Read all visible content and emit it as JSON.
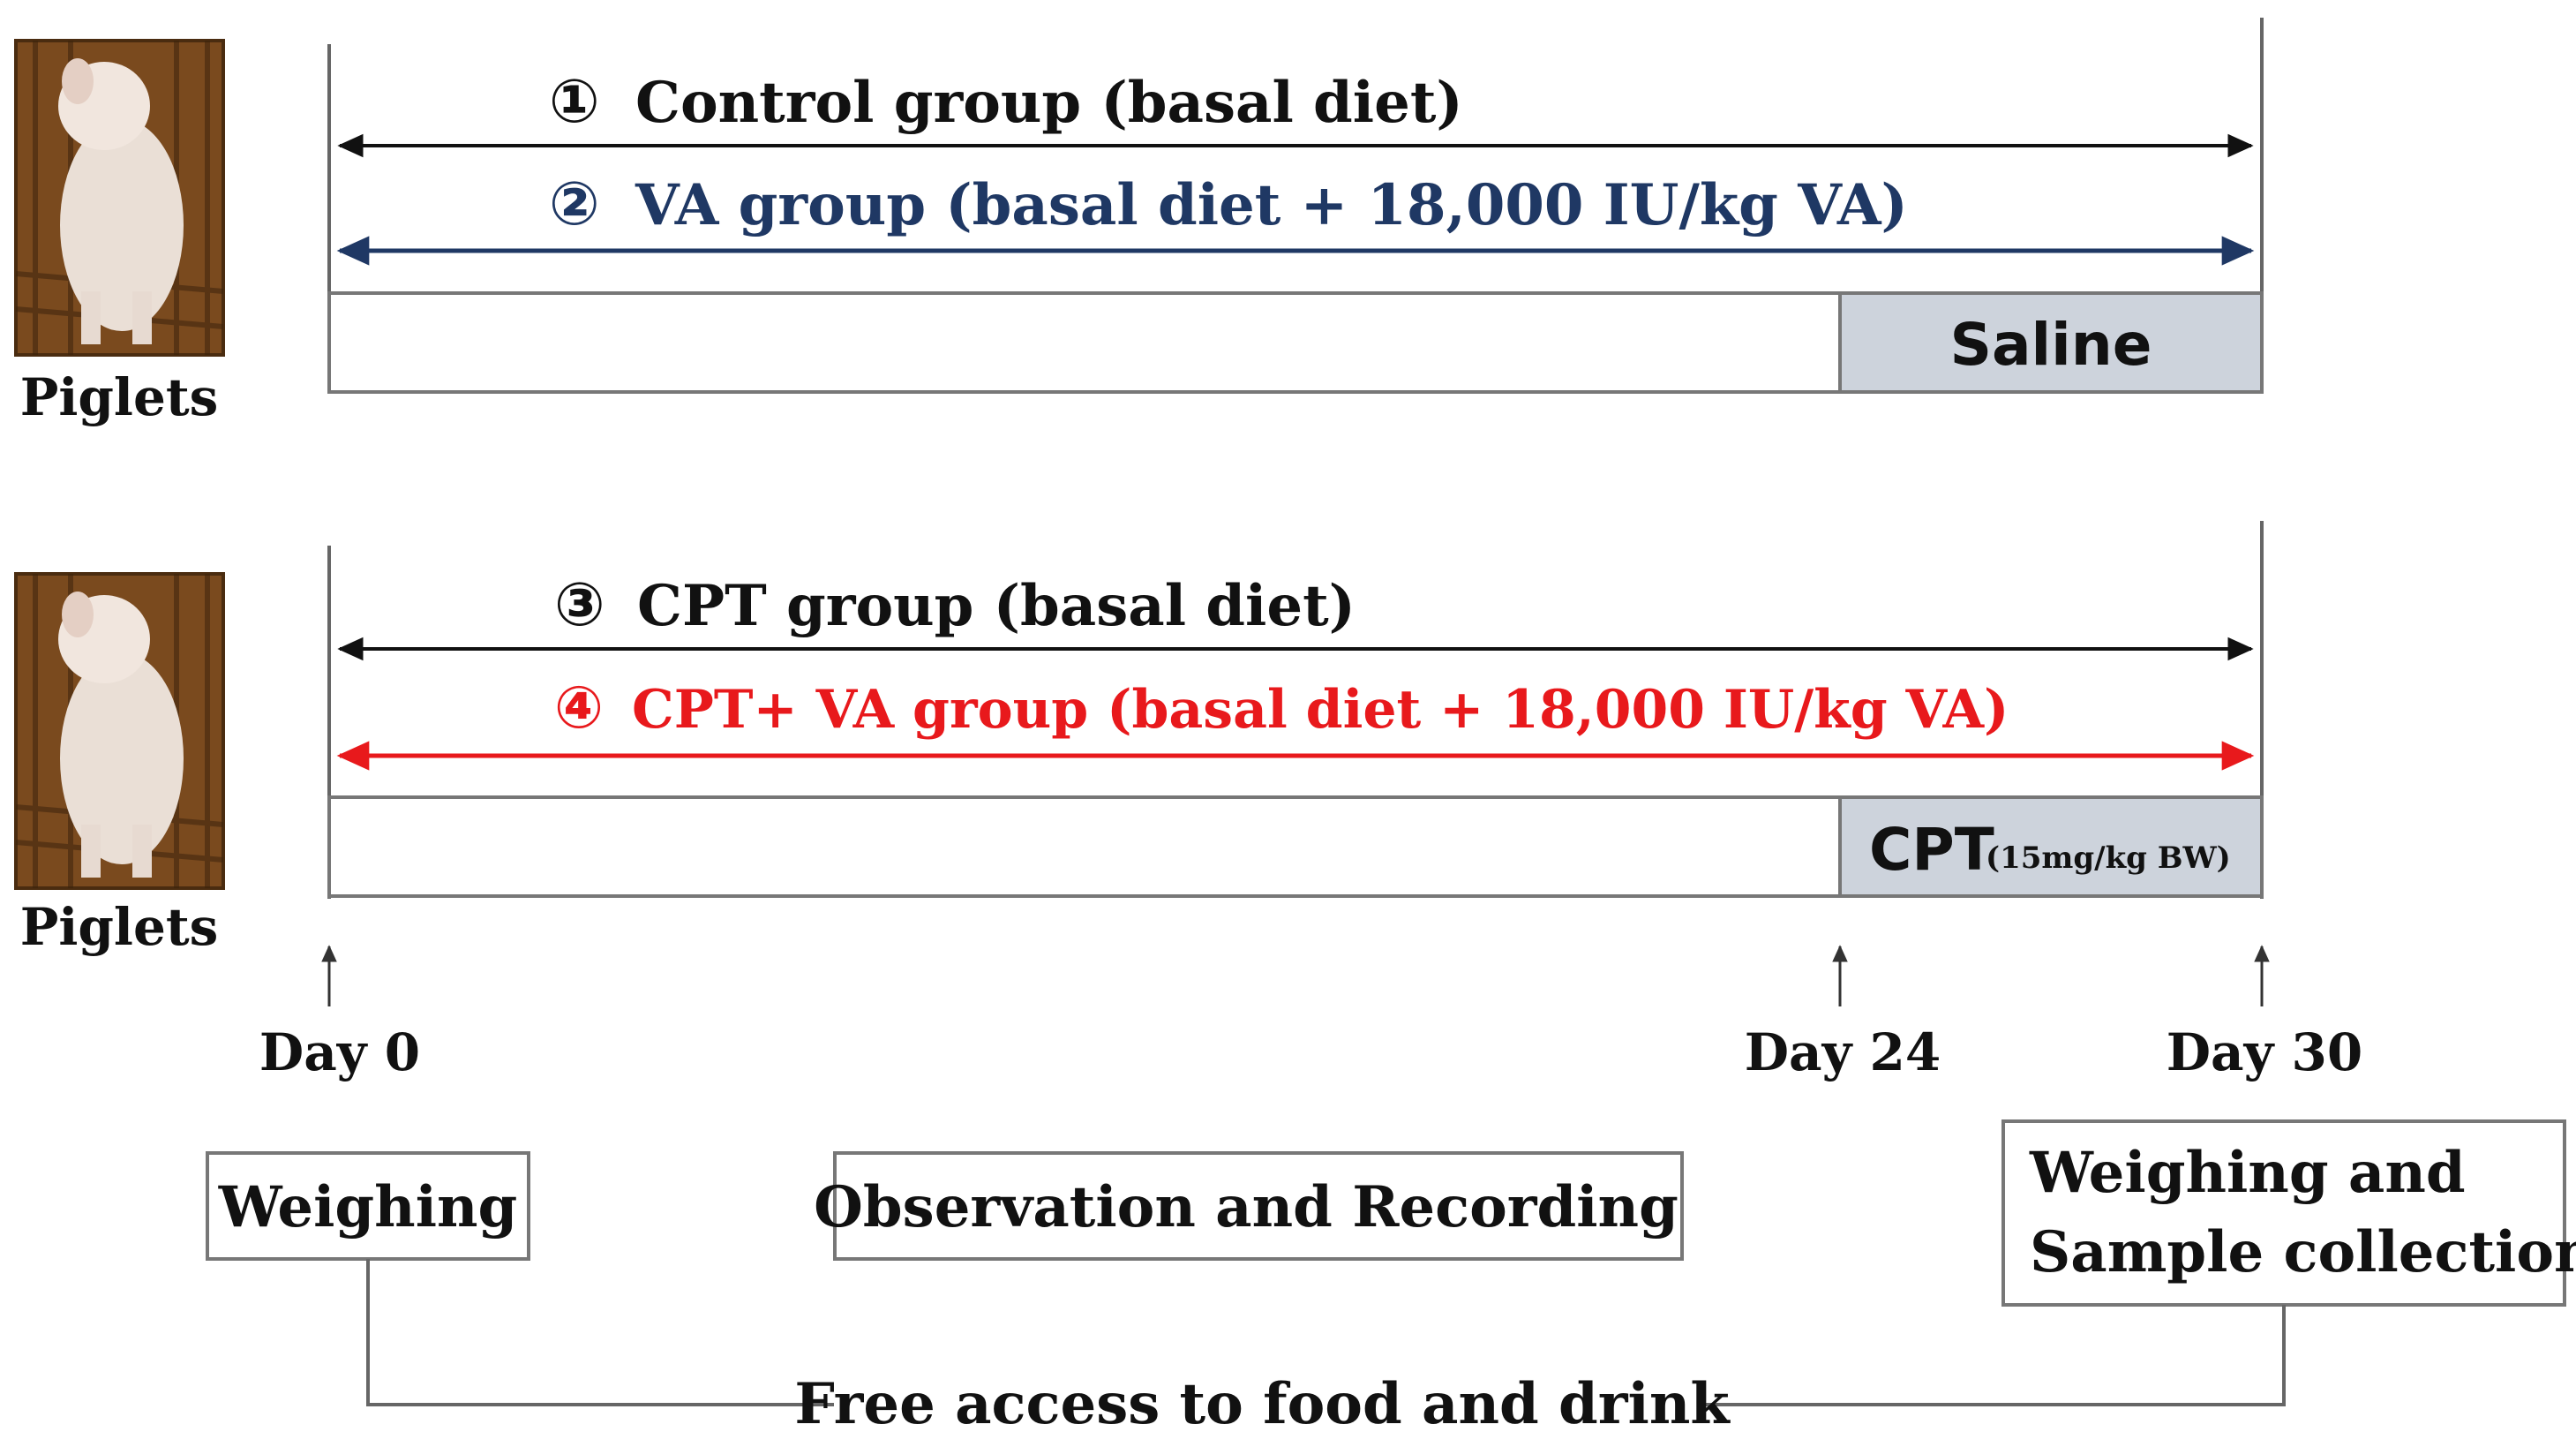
{
  "colors": {
    "black": "#111111",
    "blue": "#1f3864",
    "red": "#e8191c",
    "injection_fill": "#cdd3dc",
    "line_gray": "#666666",
    "pig_bg": "#7a4a1e",
    "pig_body": "#eadfd6"
  },
  "piglets": {
    "top_label": "Piglets",
    "bottom_label": "Piglets"
  },
  "panel_top": {
    "group1": {
      "marker": "①",
      "label": "Control group (basal diet)"
    },
    "group2": {
      "marker": "②",
      "label": "VA group (basal diet + 18,000 IU/kg VA)"
    },
    "injection": {
      "label": "Saline"
    }
  },
  "panel_bottom": {
    "group3": {
      "marker": "③",
      "label": "CPT group (basal diet)"
    },
    "group4": {
      "marker": "④",
      "label": "CPT+ VA group (basal diet + 18,000 IU/kg VA)"
    },
    "injection": {
      "label": "CPT",
      "dose": "(15mg/kg BW)"
    }
  },
  "timeline": {
    "day0": "Day 0",
    "day24": "Day 24",
    "day30": "Day 30"
  },
  "boxes": {
    "weighing": "Weighing",
    "observation": "Observation and Recording",
    "final_line1": "Weighing and",
    "final_line2": "Sample collection"
  },
  "footer": {
    "free_access": "Free access to food and drink"
  }
}
